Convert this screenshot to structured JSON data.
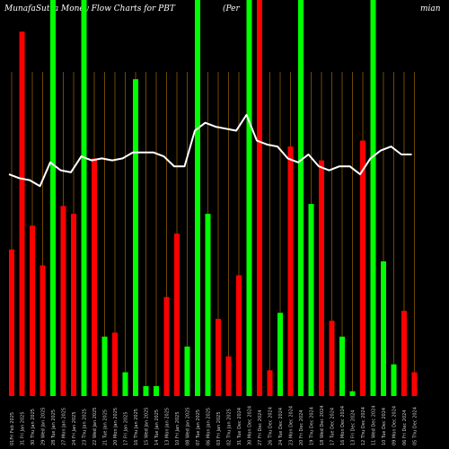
{
  "chart_data": {
    "type": "bar",
    "title_left": "MunafaSutra  Money Flow  Charts for PBT",
    "title_mid": "(Per",
    "title_right": "mian",
    "colors": {
      "up": "#00ff00",
      "down": "#ff0000",
      "line": "#ffffff",
      "grid": "#8b5a00",
      "bg": "#000000"
    },
    "ylim": [
      0,
      100
    ],
    "categories": [
      "01Fri Feb 2025",
      "31 Fri Jan 2025",
      "30 Thu Jan 2025",
      "29 Wed Jan 2025",
      "28 Tue Jan 2025",
      "27 Mon Jan 2025",
      "24 Fri Jan 2025",
      "23 Thu Jan 2025",
      "22 Wed Jan 2025",
      "21 Tue Jan 2025",
      "20 Mon Jan 2025",
      "17 Fri Jan 2025",
      "16 Thu Jan 2025",
      "15 Wed Jan 2025",
      "14 Tue Jan 2025",
      "13 Mon Jan 2025",
      "10 Fri Jan 2025",
      "08 Wed Jan 2025",
      "07 Tue Jan 2025",
      "06 Mon Jan 2025",
      "03 Fri Jan 2025",
      "02 Thu Jan 2025",
      "31 Tue Dec 2024",
      "30 Mon Dec 2024",
      "27 Fri Dec 2024",
      "26 Thu Dec 2024",
      "24 Tue Dec 2024",
      "23 Mon Dec 2024",
      "20 Fri Dec 2024",
      "19 Thu Dec 2024",
      "18 Wed Dec 2024",
      "17 Tue Dec 2024",
      "16 Mon Dec 2024",
      "13 Fri Dec 2024",
      "12 Thu Dec 2024",
      "11 Wed Dec 2024",
      "10 Tue Dec 2024",
      "09 Mon Dec 2024",
      "06 Fri Dec 2024",
      "05 Thu Dec 2024"
    ],
    "bars": [
      {
        "value": 37,
        "dir": "down"
      },
      {
        "value": 92,
        "dir": "down"
      },
      {
        "value": 43,
        "dir": "down"
      },
      {
        "value": 33,
        "dir": "down"
      },
      {
        "value": 100,
        "dir": "up"
      },
      {
        "value": 48,
        "dir": "down"
      },
      {
        "value": 46,
        "dir": "down"
      },
      {
        "value": 100,
        "dir": "up"
      },
      {
        "value": 60,
        "dir": "down"
      },
      {
        "value": 15,
        "dir": "up"
      },
      {
        "value": 16,
        "dir": "down"
      },
      {
        "value": 6,
        "dir": "up"
      },
      {
        "value": 80,
        "dir": "up"
      },
      {
        "value": 2.5,
        "dir": "up"
      },
      {
        "value": 2.5,
        "dir": "up"
      },
      {
        "value": 25,
        "dir": "down"
      },
      {
        "value": 41,
        "dir": "down"
      },
      {
        "value": 12.5,
        "dir": "up"
      },
      {
        "value": 100,
        "dir": "up"
      },
      {
        "value": 46,
        "dir": "up"
      },
      {
        "value": 19.5,
        "dir": "down"
      },
      {
        "value": 10,
        "dir": "down"
      },
      {
        "value": 30.5,
        "dir": "down"
      },
      {
        "value": 100,
        "dir": "up"
      },
      {
        "value": 100,
        "dir": "down"
      },
      {
        "value": 6.5,
        "dir": "down"
      },
      {
        "value": 21,
        "dir": "up"
      },
      {
        "value": 63,
        "dir": "down"
      },
      {
        "value": 100,
        "dir": "up"
      },
      {
        "value": 48.5,
        "dir": "up"
      },
      {
        "value": 59.5,
        "dir": "down"
      },
      {
        "value": 19,
        "dir": "down"
      },
      {
        "value": 15,
        "dir": "up"
      },
      {
        "value": 1.2,
        "dir": "up"
      },
      {
        "value": 64.5,
        "dir": "down"
      },
      {
        "value": 100,
        "dir": "up"
      },
      {
        "value": 34,
        "dir": "up"
      },
      {
        "value": 8,
        "dir": "up"
      },
      {
        "value": 21.5,
        "dir": "down"
      },
      {
        "value": 6,
        "dir": "down"
      }
    ],
    "line": [
      56,
      55,
      54.5,
      53,
      59,
      57,
      56.5,
      60.5,
      59.5,
      60,
      59.5,
      60,
      61.5,
      61.5,
      61.5,
      60.5,
      58,
      58,
      67,
      69,
      68,
      67.5,
      67,
      71,
      64.5,
      63.5,
      63,
      60,
      59,
      61,
      58,
      57,
      58,
      58,
      56,
      60,
      62,
      63,
      61,
      61
    ]
  }
}
